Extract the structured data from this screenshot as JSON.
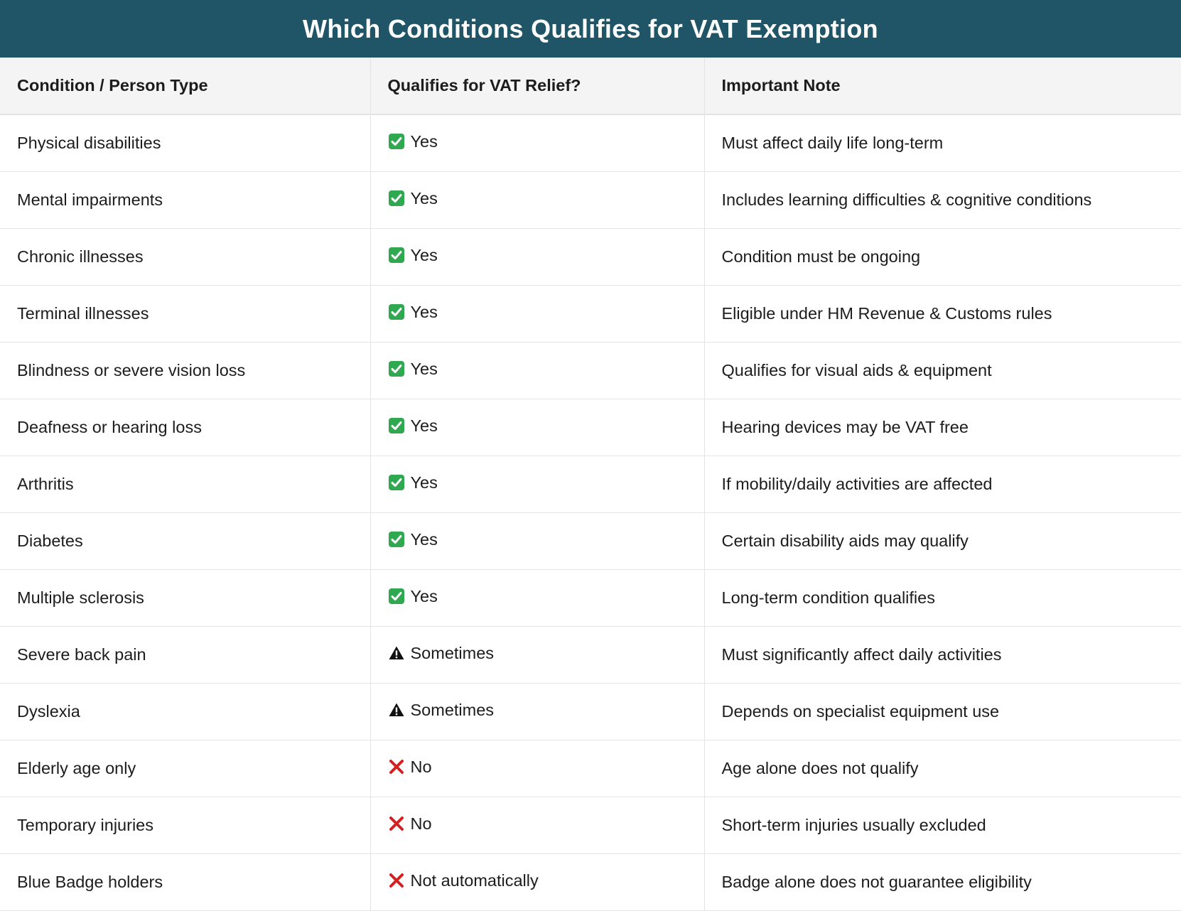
{
  "title": "Which Conditions Qualifies for VAT Exemption",
  "headers": [
    "Condition / Person Type",
    "Qualifies for VAT Relief?",
    "Important Note"
  ],
  "status_icons": {
    "yes": "check-box-icon",
    "sometimes": "warning-icon",
    "no": "cross-icon"
  },
  "colors": {
    "title_bg": "#1f5566",
    "check_green": "#2fa84f",
    "cross_red": "#d42020"
  },
  "rows": [
    {
      "condition": "Physical disabilities",
      "status": "Yes",
      "icon": "yes",
      "note": "Must affect daily life long-term"
    },
    {
      "condition": "Mental impairments",
      "status": "Yes",
      "icon": "yes",
      "note": "Includes learning difficulties & cognitive conditions"
    },
    {
      "condition": "Chronic illnesses",
      "status": "Yes",
      "icon": "yes",
      "note": "Condition must be ongoing"
    },
    {
      "condition": "Terminal illnesses",
      "status": "Yes",
      "icon": "yes",
      "note": "Eligible under HM Revenue & Customs rules"
    },
    {
      "condition": "Blindness or severe vision loss",
      "status": "Yes",
      "icon": "yes",
      "note": "Qualifies for visual aids & equipment"
    },
    {
      "condition": "Deafness or hearing loss",
      "status": "Yes",
      "icon": "yes",
      "note": "Hearing devices may be VAT free"
    },
    {
      "condition": "Arthritis",
      "status": "Yes",
      "icon": "yes",
      "note": "If mobility/daily activities are affected"
    },
    {
      "condition": "Diabetes",
      "status": "Yes",
      "icon": "yes",
      "note": "Certain disability aids may qualify"
    },
    {
      "condition": "Multiple sclerosis",
      "status": "Yes",
      "icon": "yes",
      "note": "Long-term condition qualifies"
    },
    {
      "condition": "Severe back pain",
      "status": "Sometimes",
      "icon": "sometimes",
      "note": "Must significantly affect daily activities"
    },
    {
      "condition": "Dyslexia",
      "status": "Sometimes",
      "icon": "sometimes",
      "note": "Depends on specialist equipment use"
    },
    {
      "condition": "Elderly age only",
      "status": "No",
      "icon": "no",
      "note": "Age alone does not qualify"
    },
    {
      "condition": "Temporary injuries",
      "status": "No",
      "icon": "no",
      "note": "Short-term injuries usually excluded"
    },
    {
      "condition": "Blue Badge holders",
      "status": "Not automatically",
      "icon": "no",
      "note": "Badge alone does not guarantee eligibility"
    }
  ]
}
